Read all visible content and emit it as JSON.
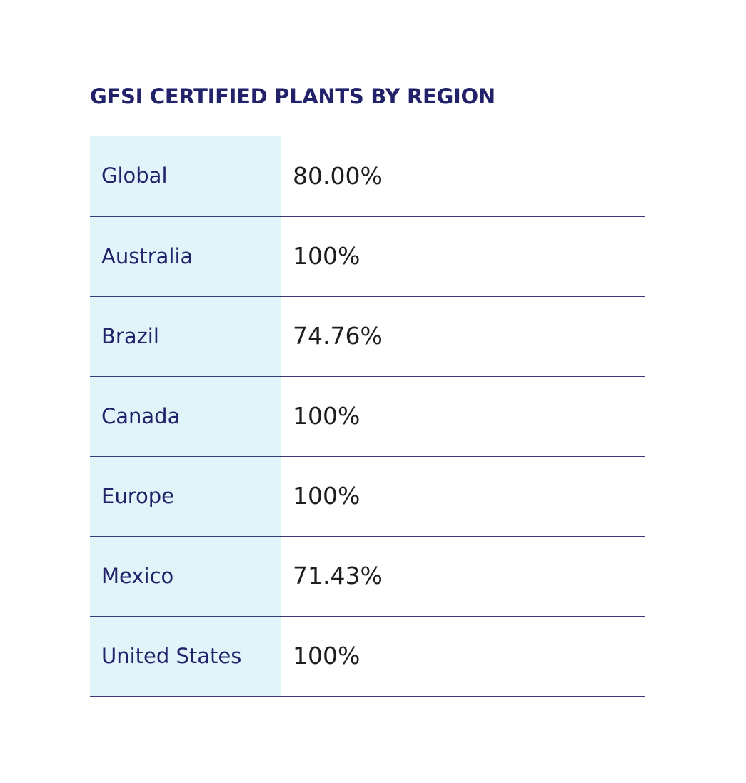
{
  "title": "GFSI CERTIFIED PLANTS BY REGION",
  "colors": {
    "title": "#22226b",
    "region_bg": "#e0f4fa",
    "divider": "#3a3a78"
  },
  "rows": [
    {
      "region": "Global",
      "value": "80.00%"
    },
    {
      "region": "Australia",
      "value": "100%"
    },
    {
      "region": "Brazil",
      "value": "74.76%"
    },
    {
      "region": "Canada",
      "value": "100%"
    },
    {
      "region": "Europe",
      "value": "100%"
    },
    {
      "region": "Mexico",
      "value": "71.43%"
    },
    {
      "region": "United States",
      "value": "100%"
    }
  ]
}
